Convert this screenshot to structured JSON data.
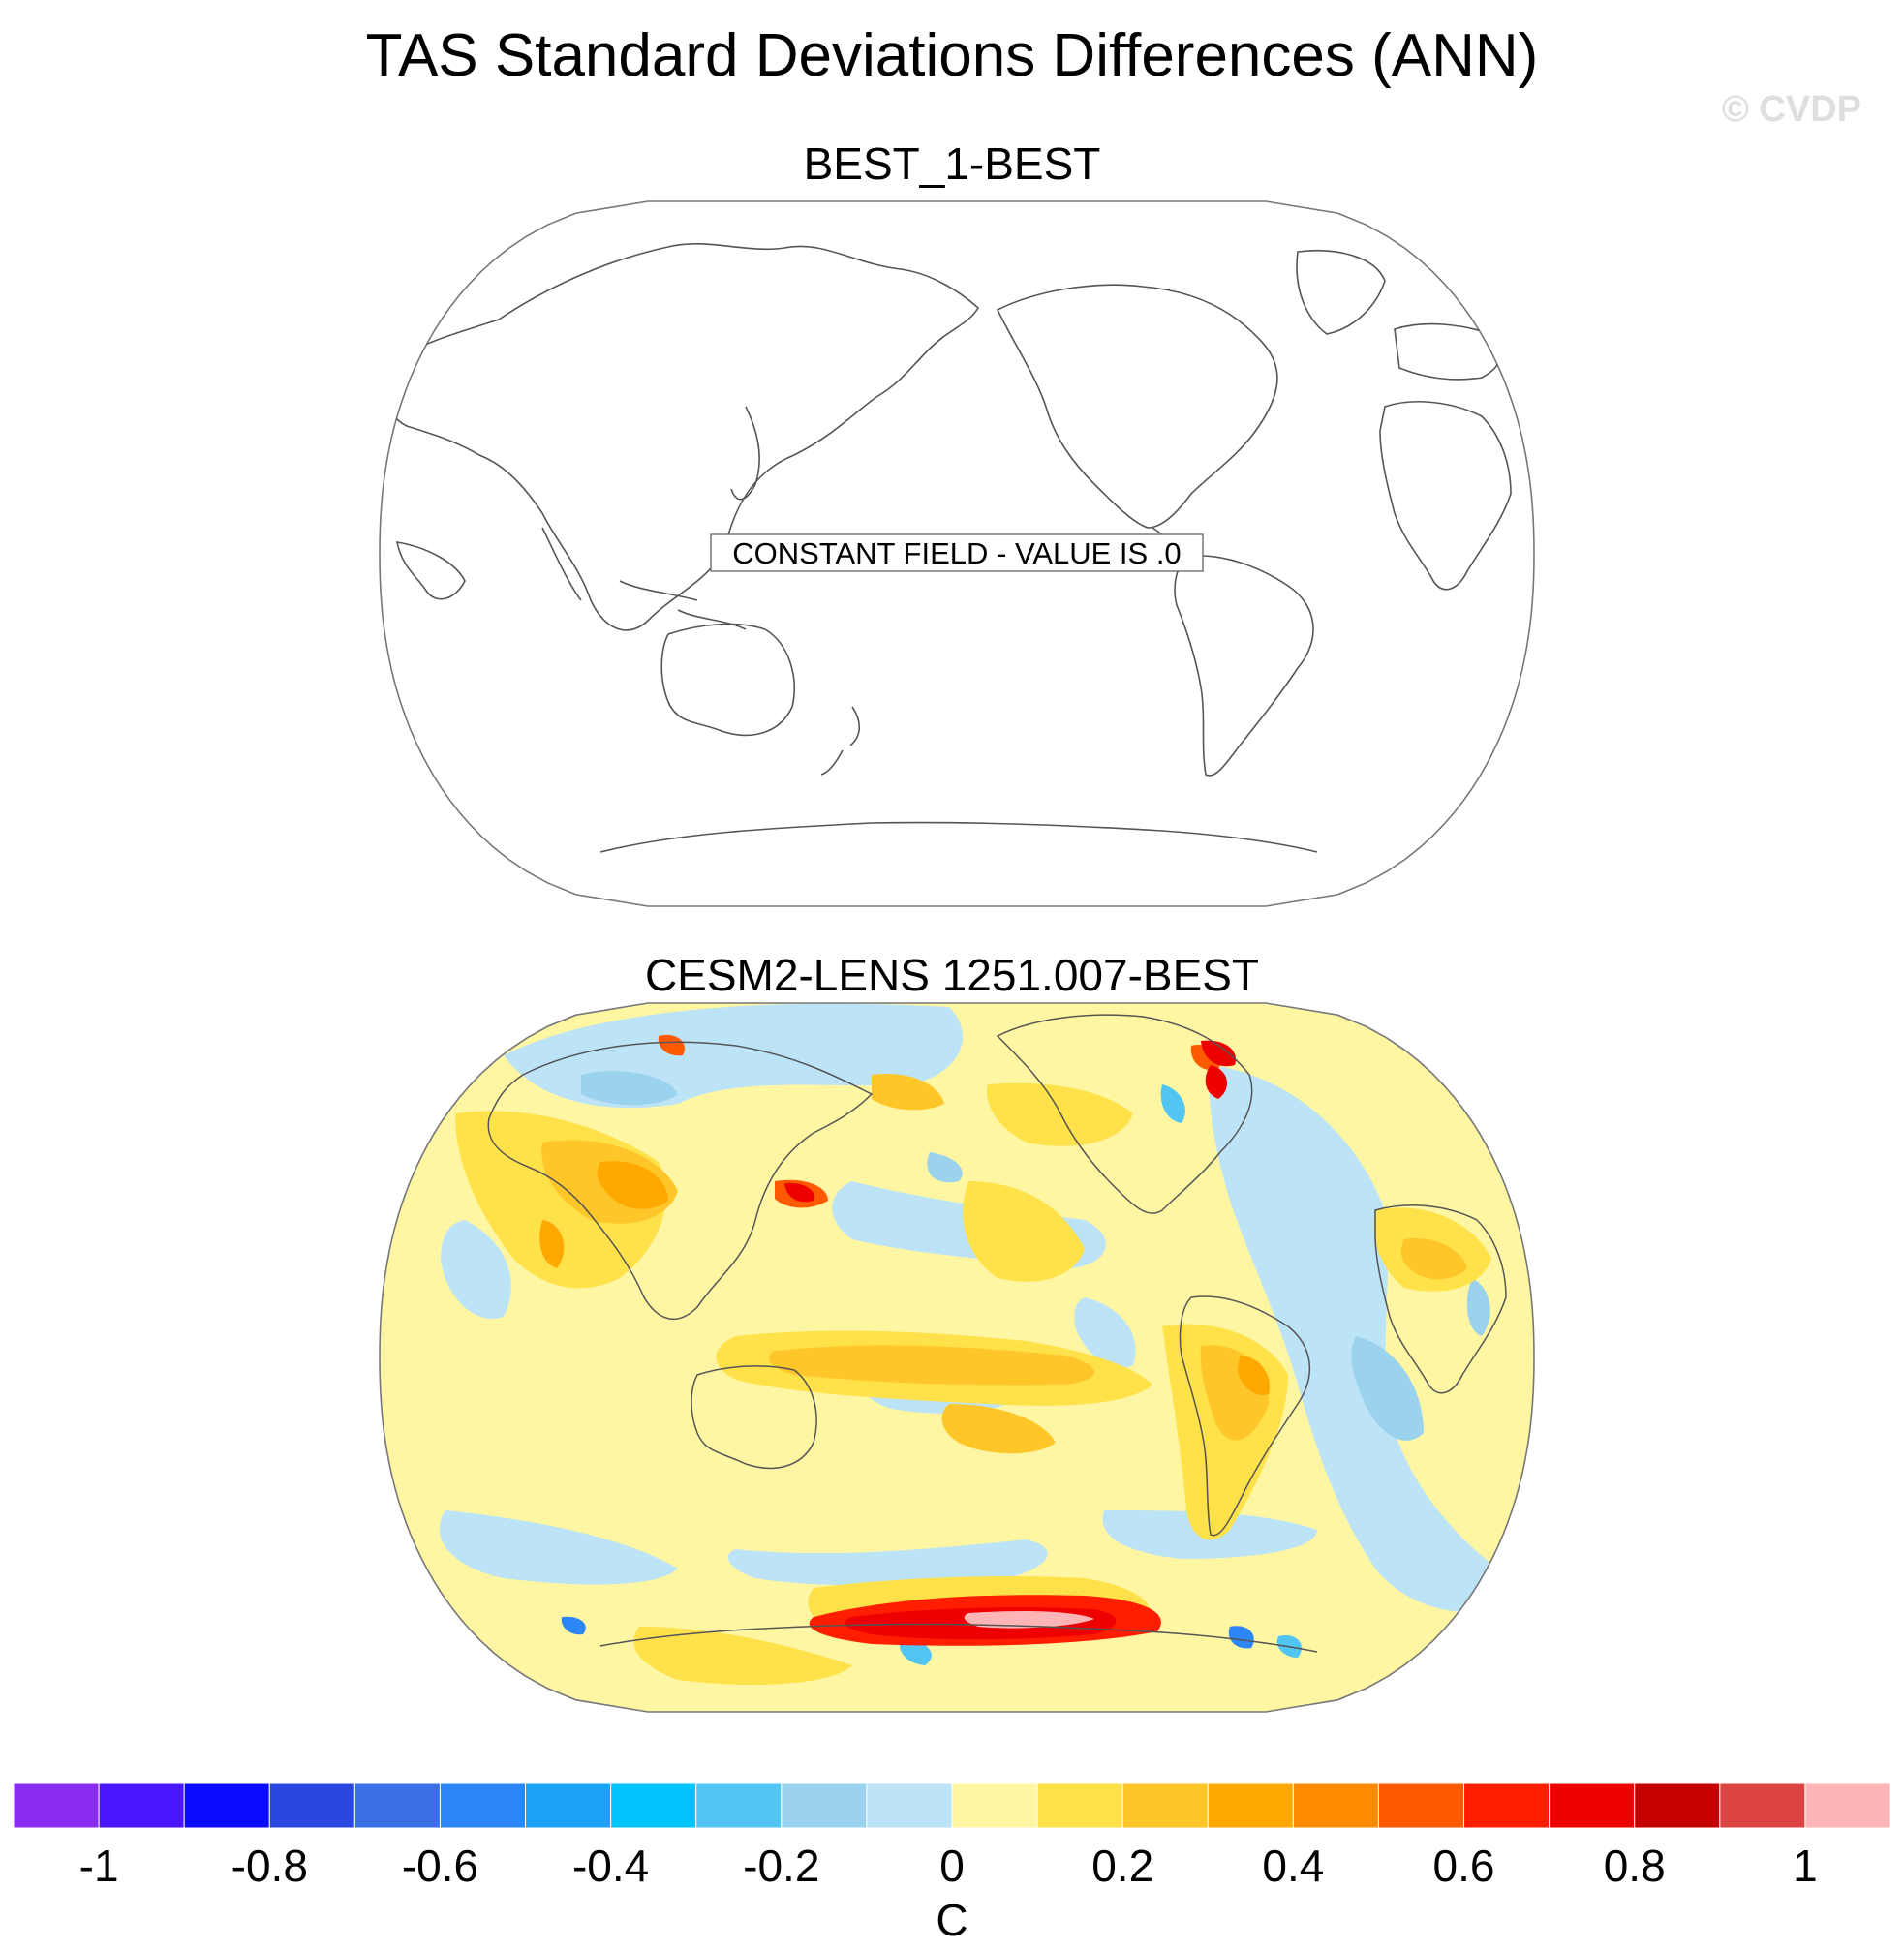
{
  "title": "TAS Standard Deviations Differences (ANN)",
  "watermark": "© CVDP",
  "panels": [
    {
      "title": "BEST_1-BEST",
      "note": "CONSTANT FIELD - VALUE IS .0",
      "projection": "Robinson",
      "central_longitude": 210,
      "constant_value": 0.0
    },
    {
      "title": "CESM2-LENS 1251.007-BEST",
      "projection": "Robinson",
      "central_longitude": 210
    }
  ],
  "colorbar": {
    "unit": "C",
    "levels": [
      -1,
      -0.9,
      -0.8,
      -0.7,
      -0.6,
      -0.5,
      -0.4,
      -0.3,
      -0.2,
      -0.1,
      0,
      0.1,
      0.2,
      0.3,
      0.4,
      0.5,
      0.6,
      0.7,
      0.8,
      0.9,
      1
    ],
    "colors": [
      "#8a2bf2",
      "#4a16ff",
      "#0b0bff",
      "#2c46e0",
      "#3a6fe6",
      "#2c86f5",
      "#1ca2f8",
      "#00c3ff",
      "#53c5f2",
      "#9bd3ef",
      "#bde3f6",
      "#fff6a3",
      "#ffe14a",
      "#ffc629",
      "#ffa800",
      "#ff8a00",
      "#ff5a00",
      "#ff1e00",
      "#ee0000",
      "#c40000",
      "#dc4444",
      "#ffb5b5"
    ],
    "tick_labels": [
      "-1",
      "-0.8",
      "-0.6",
      "-0.4",
      "-0.2",
      "0",
      "0.2",
      "0.4",
      "0.6",
      "0.8",
      "1"
    ]
  }
}
